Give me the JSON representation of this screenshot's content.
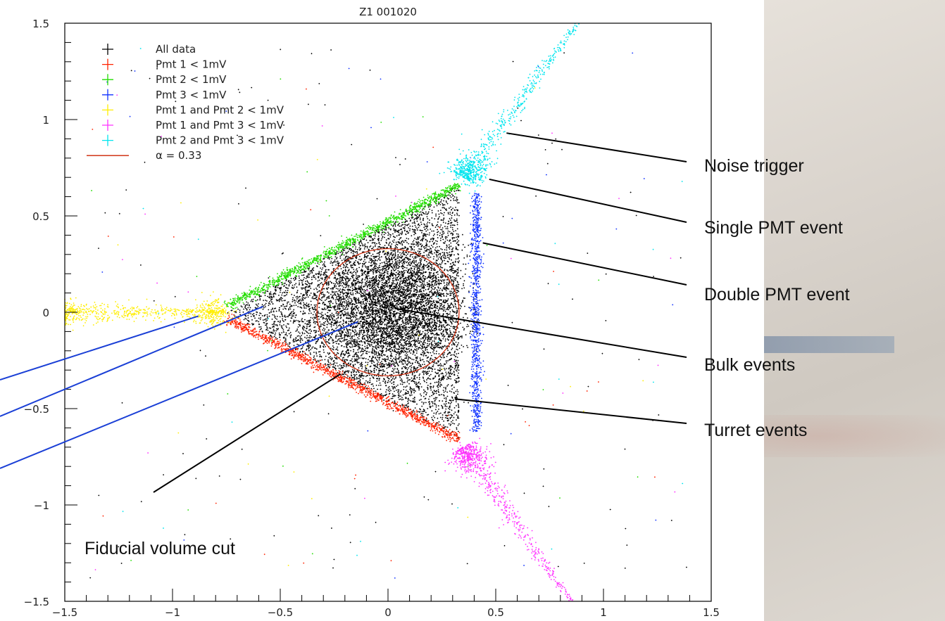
{
  "chart_data": {
    "type": "scatter",
    "title": "Z1 001020",
    "xlabel": "",
    "ylabel": "",
    "xlim": [
      -1.5,
      1.5
    ],
    "ylim": [
      -1.5,
      1.5
    ],
    "xticks": [
      -1.5,
      -1,
      -0.5,
      0,
      0.5,
      1,
      1.5
    ],
    "yticks": [
      -1.5,
      -1,
      -0.5,
      0,
      0.5,
      1,
      1.5
    ],
    "xtick_labels": [
      "−1.5",
      "−1",
      "−0.5",
      "0",
      "0.5",
      "1",
      "1.5"
    ],
    "ytick_labels": [
      "−1.5",
      "−1",
      "−0.5",
      "0",
      "0.5",
      "1",
      "1.5"
    ],
    "legend_position": "top-left",
    "series": [
      {
        "name": "All data",
        "marker": "+",
        "color": "#000000",
        "region": {
          "shape": "triangle",
          "vertices": [
            [
              -0.75,
              0.0
            ],
            [
              0.33,
              0.66
            ],
            [
              0.33,
              -0.66
            ]
          ]
        },
        "approx_points": 9000
      },
      {
        "name": "Pmt 1 < 1mV",
        "marker": "+",
        "color": "#ff2200",
        "region": {
          "shape": "segment",
          "from": [
            -0.75,
            -0.03
          ],
          "to": [
            0.33,
            -0.66
          ]
        },
        "approx_points": 1200
      },
      {
        "name": "Pmt 2 < 1mV",
        "marker": "+",
        "color": "#22dd00",
        "region": {
          "shape": "segment",
          "from": [
            -0.75,
            0.03
          ],
          "to": [
            0.33,
            0.66
          ]
        },
        "approx_points": 1200
      },
      {
        "name": "Pmt 3 < 1mV",
        "marker": "+",
        "color": "#1133ff",
        "region": {
          "shape": "segment",
          "from": [
            0.41,
            0.62
          ],
          "to": [
            0.41,
            -0.62
          ]
        },
        "approx_points": 900
      },
      {
        "name": "Pmt 1 and Pmt 2 < 1mV",
        "marker": "+",
        "color": "#ffee00",
        "region": {
          "shape": "segment",
          "from": [
            -1.5,
            0.0
          ],
          "to": [
            -0.75,
            0.0
          ]
        },
        "approx_points": 500
      },
      {
        "name": "Pmt 1 and Pmt 3 < 1mV",
        "marker": "+",
        "color": "#ff33ff",
        "region": {
          "shape": "segment",
          "from": [
            0.35,
            -0.7
          ],
          "to": [
            0.85,
            -1.5
          ]
        },
        "approx_points": 500
      },
      {
        "name": "Pmt 2 and Pmt 3 < 1mV",
        "marker": "+",
        "color": "#00e5ee",
        "region": {
          "shape": "segment",
          "from": [
            0.35,
            0.7
          ],
          "to": [
            0.88,
            1.5
          ]
        },
        "approx_points": 500
      }
    ],
    "circle": {
      "name": "α = 0.33",
      "center": [
        0,
        0
      ],
      "radius": 0.33,
      "color": "#cc2200"
    },
    "annotations": [
      {
        "text": "Noise trigger",
        "target": [
          0.55,
          0.93
        ]
      },
      {
        "text": "Single PMT event",
        "target": [
          0.47,
          0.69
        ]
      },
      {
        "text": "Double  PMT event",
        "target": [
          0.44,
          0.36
        ]
      },
      {
        "text": "Bulk events",
        "target": [
          0.03,
          0.02
        ]
      },
      {
        "text": "Turret events",
        "target": [
          0.31,
          -0.45
        ]
      },
      {
        "text": "Fiducial volume cut",
        "target": [
          -0.22,
          -0.32
        ]
      }
    ],
    "blue_pointers": [
      {
        "target": [
          -0.88,
          -0.02
        ]
      },
      {
        "target": [
          -0.58,
          0.03
        ]
      },
      {
        "target": [
          -0.14,
          -0.05
        ]
      }
    ]
  }
}
